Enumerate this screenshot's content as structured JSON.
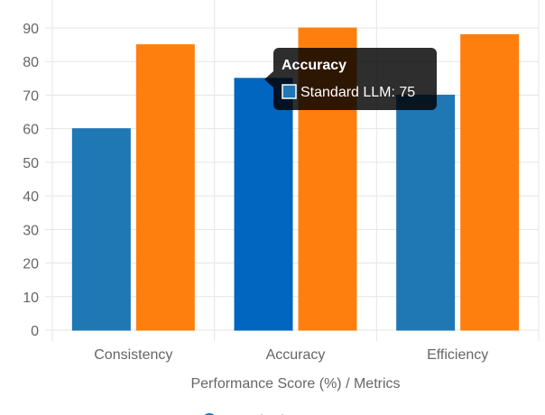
{
  "chart_data": {
    "type": "bar",
    "categories": [
      "Consistency",
      "Accuracy",
      "Efficiency"
    ],
    "series": [
      {
        "name": "Standard LLM",
        "values": [
          60,
          75,
          70
        ],
        "color": "#1f77b4",
        "hover_color": "#0066bf"
      },
      {
        "name": "",
        "values": [
          85,
          90,
          88
        ],
        "color": "#ff7f0e"
      }
    ],
    "title": "",
    "xlabel": "Performance Score (%) / Metrics",
    "ylabel": "",
    "ylim": [
      0,
      90
    ],
    "y_ticks": [
      0,
      10,
      20,
      30,
      40,
      50,
      60,
      70,
      80,
      90
    ],
    "grid": true,
    "legend": {
      "placement": "bottom",
      "entries": [
        "Standard LLM"
      ]
    },
    "tooltip": {
      "visible": true,
      "category_index": 1,
      "series_index": 0,
      "title": "Accuracy",
      "label": "Standard LLM: 75"
    },
    "colors": {
      "grid": "#e5e5e5",
      "axis": "#d9d9d9",
      "text": "#666666",
      "tooltip_bg": "#000000"
    }
  }
}
